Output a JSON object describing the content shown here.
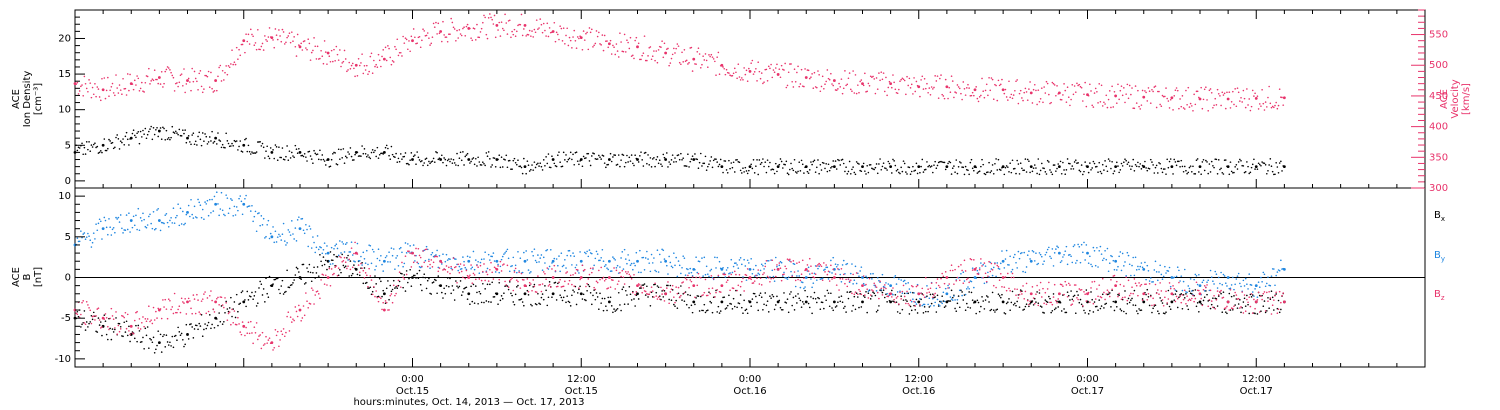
{
  "colors": {
    "density": "#000000",
    "velocity": "#e8336b",
    "bx": "#000000",
    "by": "#1f86e0",
    "bz": "#e8336b",
    "axis": "#000000"
  },
  "chart_data": [
    {
      "type": "scatter",
      "panel": "top",
      "left_ylabel": [
        "ACE",
        "Ion Density",
        "[cm⁻³]"
      ],
      "right_ylabel": [
        "ACE",
        "Velocity",
        "[km/s]"
      ],
      "left_ylim": [
        -1,
        24
      ],
      "left_yticks": [
        "0",
        "5",
        "10",
        "15",
        "20"
      ],
      "left_ytick_values": [
        0,
        5,
        10,
        15,
        20
      ],
      "right_ylim": [
        300,
        590
      ],
      "right_yticks": [
        "300",
        "350",
        "400",
        "450",
        "500",
        "550"
      ],
      "right_ytick_values": [
        300,
        350,
        400,
        450,
        500,
        550
      ],
      "series": [
        {
          "name": "Ion Density",
          "color_key": "density",
          "x_hours": [
            0,
            2,
            4,
            6,
            8,
            10,
            12,
            14,
            16,
            18,
            20,
            22,
            24,
            26,
            28,
            30,
            32,
            34,
            36,
            38,
            40,
            42,
            44,
            46,
            48,
            50,
            52,
            54,
            56,
            58,
            60,
            62,
            64,
            66,
            68,
            70,
            72,
            74,
            76,
            78,
            80,
            82,
            84,
            86
          ],
          "values": [
            4,
            5,
            6,
            7,
            6,
            6,
            5,
            4,
            4,
            3,
            4,
            4,
            3,
            3,
            3,
            3,
            2,
            3,
            3,
            3,
            3,
            3,
            3,
            2,
            2,
            2,
            2,
            2,
            2,
            2,
            2,
            2,
            2,
            2,
            2,
            2,
            2,
            2,
            2,
            2,
            2,
            2,
            2,
            2
          ]
        },
        {
          "name": "Velocity",
          "color_key": "velocity",
          "axis": "right",
          "x_hours": [
            0,
            2,
            4,
            6,
            8,
            10,
            12,
            14,
            16,
            18,
            20,
            22,
            24,
            26,
            28,
            30,
            32,
            34,
            36,
            38,
            40,
            42,
            44,
            46,
            48,
            50,
            52,
            54,
            56,
            58,
            60,
            62,
            64,
            66,
            68,
            70,
            72,
            74,
            76,
            78,
            80,
            82,
            84,
            86
          ],
          "values": [
            470,
            460,
            470,
            480,
            475,
            475,
            540,
            545,
            530,
            520,
            500,
            510,
            540,
            555,
            560,
            565,
            565,
            555,
            545,
            535,
            530,
            520,
            510,
            500,
            490,
            485,
            480,
            475,
            470,
            470,
            465,
            465,
            460,
            460,
            455,
            455,
            452,
            450,
            448,
            447,
            445,
            445,
            446,
            447
          ]
        }
      ]
    },
    {
      "type": "scatter",
      "panel": "bottom",
      "ylabel": [
        "ACE",
        "B",
        "[nT]"
      ],
      "ylim": [
        -11,
        11
      ],
      "yticks": [
        "-10",
        "-5",
        "0",
        "5",
        "10"
      ],
      "ytick_values": [
        -10,
        -5,
        0,
        5,
        10
      ],
      "zero_line": true,
      "legend": {
        "position": "right",
        "entries": [
          "Bx",
          "By",
          "Bz"
        ]
      },
      "series": [
        {
          "name": "Bx",
          "color_key": "bx",
          "x_hours": [
            0,
            2,
            4,
            6,
            8,
            10,
            12,
            14,
            16,
            18,
            20,
            22,
            24,
            26,
            28,
            30,
            32,
            34,
            36,
            38,
            40,
            42,
            44,
            46,
            48,
            50,
            52,
            54,
            56,
            58,
            60,
            62,
            64,
            66,
            68,
            70,
            72,
            74,
            76,
            78,
            80,
            82,
            84,
            86
          ],
          "values": [
            -5,
            -6,
            -7,
            -8,
            -7,
            -5,
            -3,
            -1,
            0,
            2,
            1,
            -2,
            0,
            -1,
            -2,
            -2,
            -2,
            -2,
            -2,
            -3,
            -2,
            -2,
            -3,
            -3,
            -3,
            -3,
            -3,
            -3,
            -3,
            -3,
            -3,
            -3,
            -3,
            -3,
            -3,
            -3,
            -3,
            -3,
            -3,
            -3,
            -3,
            -3,
            -3,
            -3
          ]
        },
        {
          "name": "By",
          "color_key": "by",
          "x_hours": [
            0,
            2,
            4,
            6,
            8,
            10,
            12,
            14,
            16,
            18,
            20,
            22,
            24,
            26,
            28,
            30,
            32,
            34,
            36,
            38,
            40,
            42,
            44,
            46,
            48,
            50,
            52,
            54,
            56,
            58,
            60,
            62,
            64,
            66,
            68,
            70,
            72,
            74,
            76,
            78,
            80,
            82,
            84,
            86
          ],
          "values": [
            4,
            6,
            7,
            7,
            8,
            9,
            9,
            5,
            6,
            3,
            3,
            2,
            3,
            2,
            2,
            2,
            2,
            2,
            2,
            2,
            2,
            2,
            1,
            1,
            1,
            1,
            0,
            1,
            0,
            -1,
            -2,
            -2,
            0,
            2,
            2,
            3,
            3,
            2,
            1,
            0,
            -1,
            0,
            -1,
            1
          ]
        },
        {
          "name": "Bz",
          "color_key": "bz",
          "x_hours": [
            0,
            2,
            4,
            6,
            8,
            10,
            12,
            14,
            16,
            18,
            20,
            22,
            24,
            26,
            28,
            30,
            32,
            34,
            36,
            38,
            40,
            42,
            44,
            46,
            48,
            50,
            52,
            54,
            56,
            58,
            60,
            62,
            64,
            66,
            68,
            70,
            72,
            74,
            76,
            78,
            80,
            82,
            84,
            86
          ],
          "values": [
            -4,
            -5,
            -6,
            -4,
            -3,
            -3,
            -6,
            -8,
            -4,
            0,
            3,
            -4,
            3,
            2,
            0,
            1,
            -1,
            0,
            0,
            0,
            -1,
            -2,
            -1,
            -1,
            0,
            1,
            1,
            0,
            -1,
            -2,
            -2,
            0,
            1,
            0,
            -2,
            -2,
            -2,
            -1,
            -2,
            -2,
            -2,
            -3,
            -3,
            -3
          ]
        }
      ]
    }
  ],
  "time_axis": {
    "range_hours": [
      0,
      96
    ],
    "ticks": [
      {
        "hour": 12,
        "time": "",
        "date": ""
      },
      {
        "hour": 24,
        "time": "0:00",
        "date": "Oct.15"
      },
      {
        "hour": 36,
        "time": "12:00",
        "date": "Oct.15"
      },
      {
        "hour": 48,
        "time": "0:00",
        "date": "Oct.16"
      },
      {
        "hour": 60,
        "time": "12:00",
        "date": "Oct.16"
      },
      {
        "hour": 72,
        "time": "0:00",
        "date": "Oct.17"
      },
      {
        "hour": 84,
        "time": "12:00",
        "date": "Oct.17"
      }
    ],
    "label": "hours:minutes, Oct. 14, 2013 — Oct. 17, 2013"
  }
}
